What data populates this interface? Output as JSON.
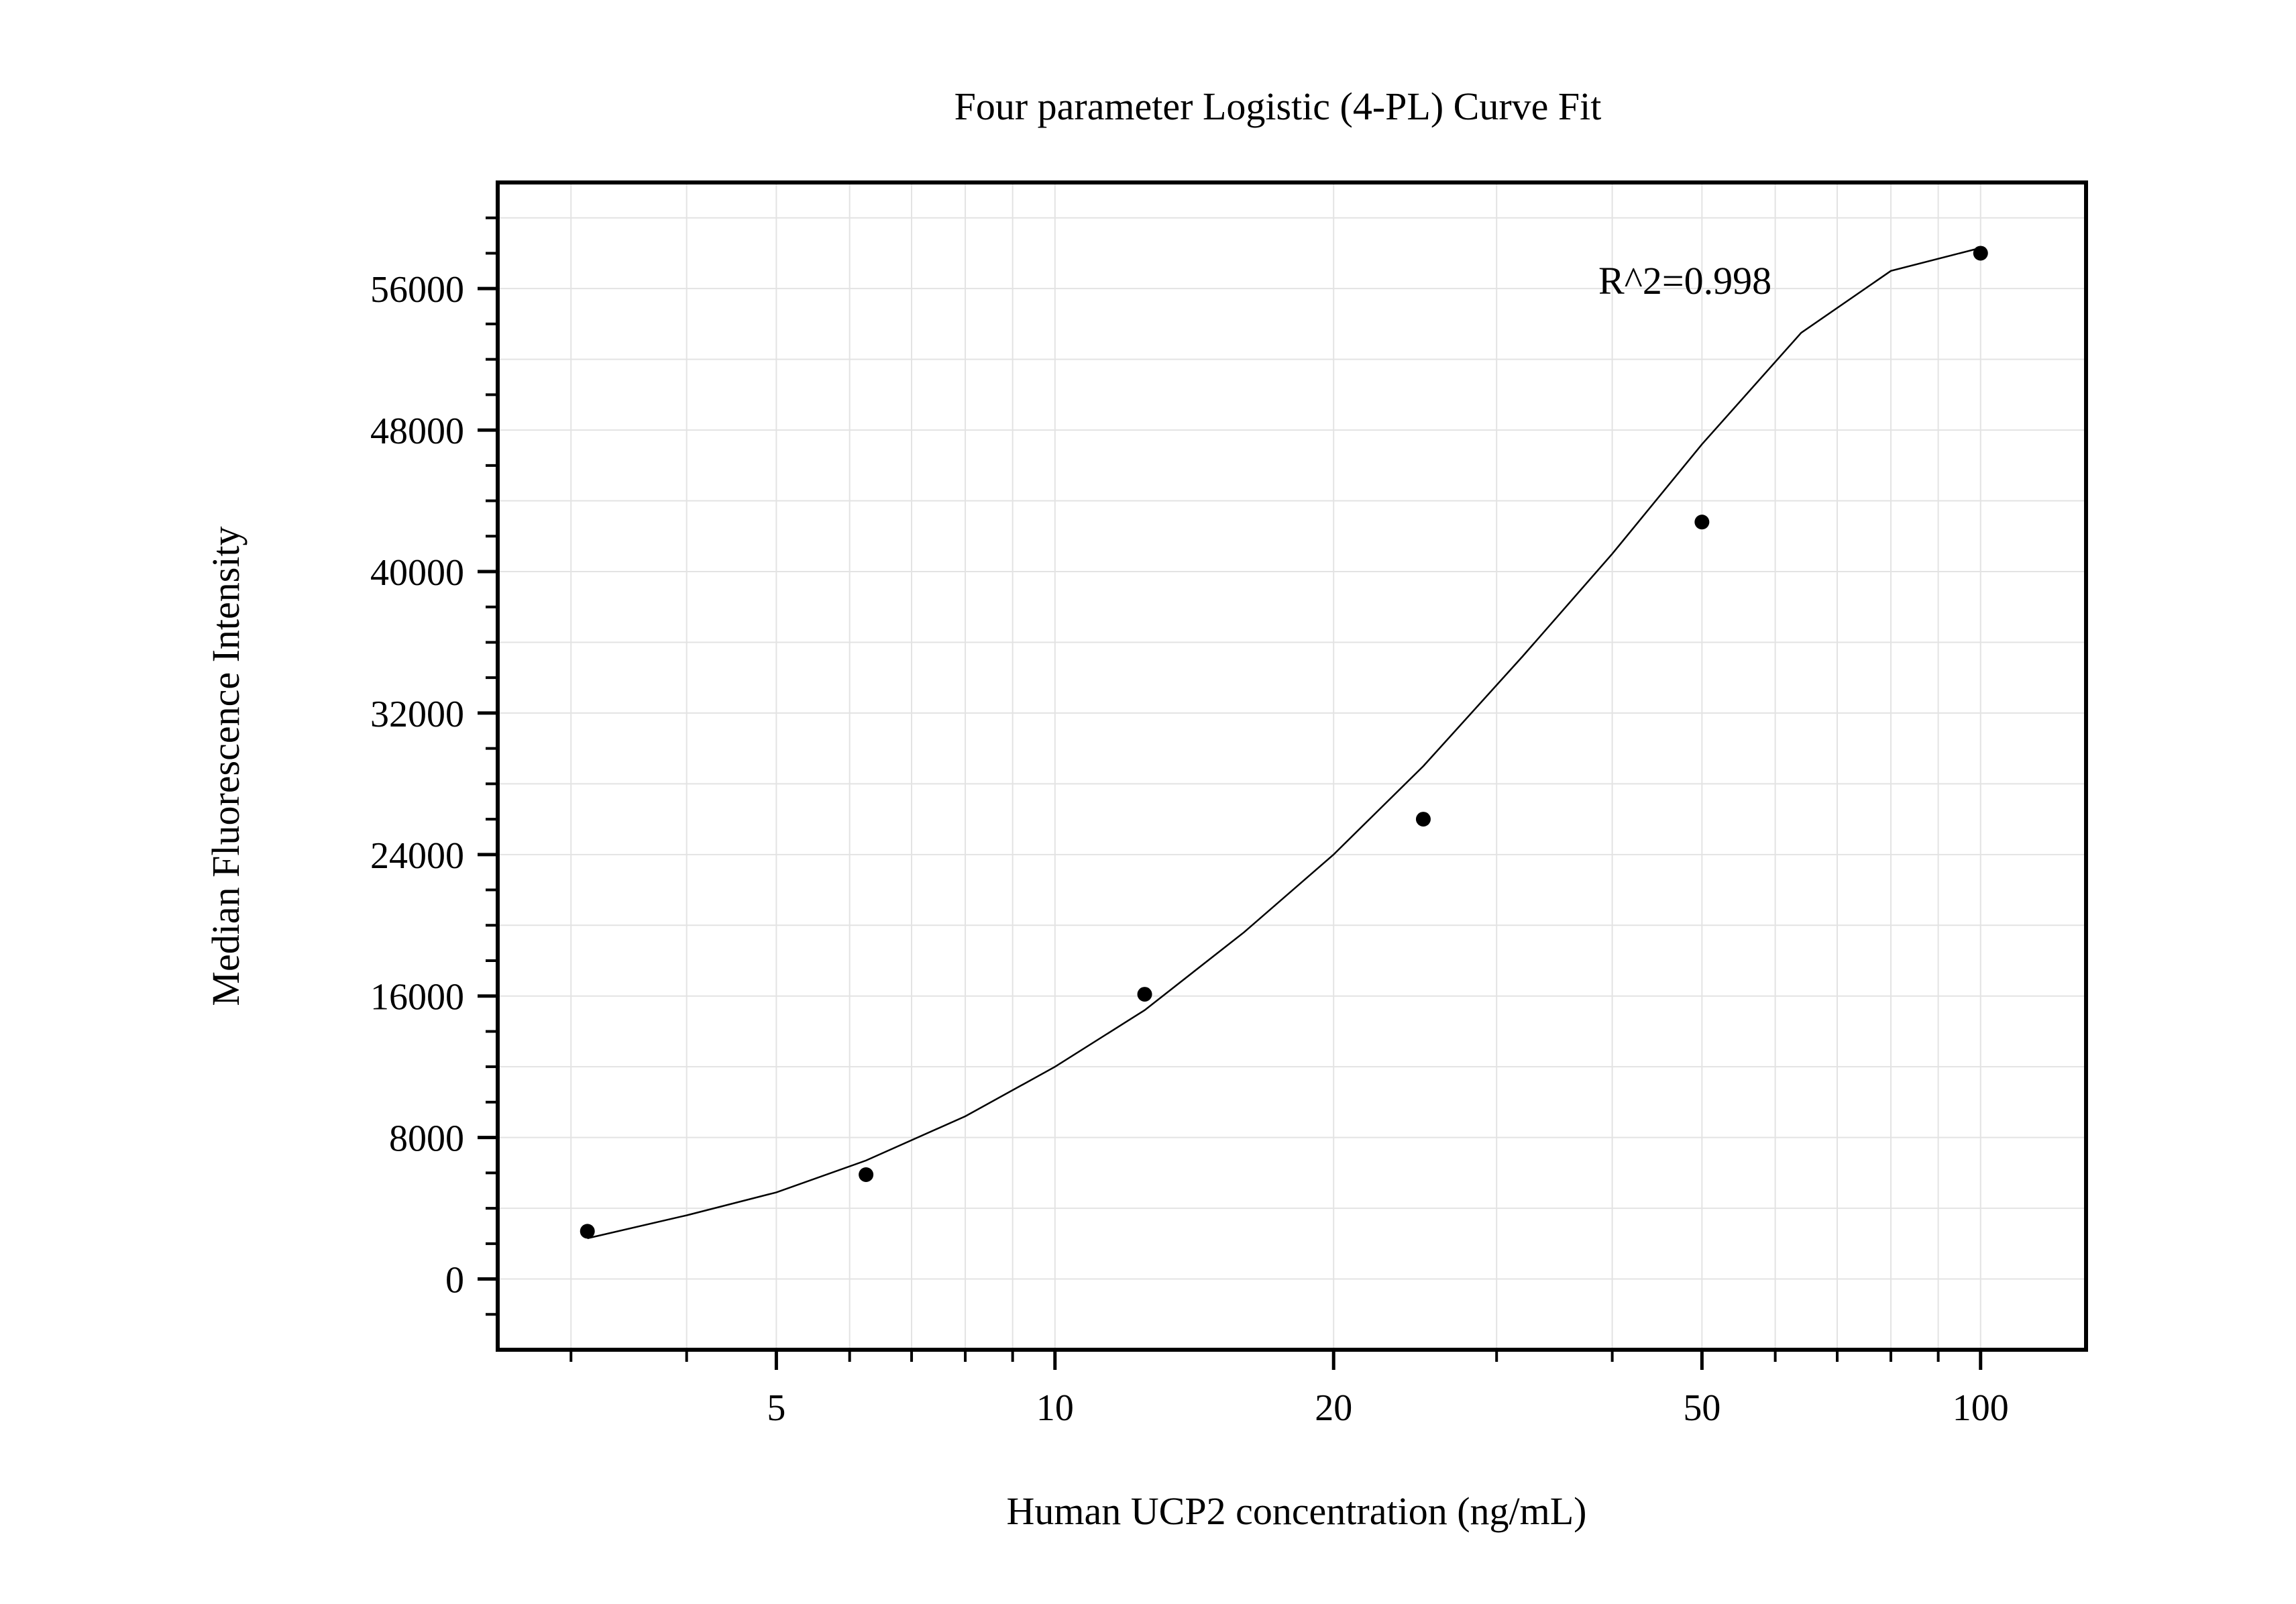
{
  "chart_data": {
    "type": "scatter",
    "title": "Four parameter Logistic (4-PL) Curve Fit",
    "xlabel": "Human UCP2 concentration (ng/mL)",
    "ylabel": "Median Fluorescence Intensity",
    "x_scale": "log",
    "xlim": [
      2.5,
      130
    ],
    "ylim": [
      -4000,
      62000
    ],
    "x_ticks": [
      5,
      10,
      20,
      50,
      100
    ],
    "x_tick_labels": [
      "5",
      "10",
      "20",
      "50",
      "100"
    ],
    "y_ticks": [
      0,
      8000,
      16000,
      24000,
      32000,
      40000,
      48000,
      56000
    ],
    "y_tick_labels": [
      "0",
      "8000",
      "16000",
      "24000",
      "32000",
      "40000",
      "48000",
      "56000"
    ],
    "grid": true,
    "annotation": "R^2=0.998",
    "series": [
      {
        "x": [
          3.125,
          6.25,
          12.5,
          25,
          50,
          100
        ],
        "y": [
          2700,
          5900,
          16100,
          26000,
          42800,
          58000
        ]
      }
    ],
    "fit_curve": {
      "x": [
        3.125,
        4,
        5,
        6.25,
        8,
        10,
        12.5,
        16,
        20,
        25,
        32,
        40,
        50,
        64,
        80,
        100
      ],
      "y": [
        2300,
        3600,
        4900,
        6700,
        9200,
        12000,
        15200,
        19600,
        24000,
        29000,
        35200,
        41000,
        47200,
        53500,
        57000,
        58300
      ]
    },
    "colors": {
      "points": "#000000",
      "curve": "#000000",
      "grid": "#e3e3e3",
      "frame": "#000000"
    }
  }
}
